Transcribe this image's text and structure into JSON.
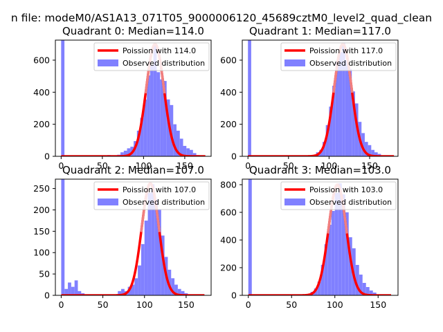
{
  "figure": {
    "suptitle": "n file: modeM0/AS1A13_071T05_9000006120_45689cztM0_level2_quad_clean"
  },
  "colors": {
    "hist": "#8080ff",
    "fit_line": "#ff0000",
    "fit_peak": "#f08080",
    "axes": "#000000"
  },
  "chart_data": [
    {
      "type": "bar",
      "title": "Quadrant 0: Median=114.0",
      "xlim": [
        -7,
        182
      ],
      "ylim": [
        0,
        725
      ],
      "xticks": [
        0,
        50,
        100,
        150
      ],
      "yticks": [
        0,
        200,
        400,
        600
      ],
      "legend": {
        "location": "top-right",
        "entries": [
          "Poission with 114.0",
          "Observed distribution"
        ]
      },
      "median": 114.0,
      "bin_width": 4,
      "hist_bins": [
        {
          "x": 0,
          "y": 725
        },
        {
          "x": 56,
          "y": 8
        },
        {
          "x": 60,
          "y": 5
        },
        {
          "x": 68,
          "y": 10
        },
        {
          "x": 72,
          "y": 25
        },
        {
          "x": 76,
          "y": 35
        },
        {
          "x": 80,
          "y": 50
        },
        {
          "x": 84,
          "y": 60
        },
        {
          "x": 88,
          "y": 95
        },
        {
          "x": 92,
          "y": 160
        },
        {
          "x": 96,
          "y": 240
        },
        {
          "x": 100,
          "y": 355
        },
        {
          "x": 104,
          "y": 505
        },
        {
          "x": 108,
          "y": 570
        },
        {
          "x": 112,
          "y": 690
        },
        {
          "x": 116,
          "y": 525
        },
        {
          "x": 120,
          "y": 480
        },
        {
          "x": 124,
          "y": 470
        },
        {
          "x": 128,
          "y": 355
        },
        {
          "x": 132,
          "y": 320
        },
        {
          "x": 136,
          "y": 200
        },
        {
          "x": 140,
          "y": 160
        },
        {
          "x": 144,
          "y": 110
        },
        {
          "x": 148,
          "y": 65
        },
        {
          "x": 152,
          "y": 50
        },
        {
          "x": 156,
          "y": 40
        },
        {
          "x": 160,
          "y": 20
        },
        {
          "x": 164,
          "y": 8
        }
      ],
      "fit_curve": {
        "x_range": [
          0,
          175
        ],
        "peak_x": 114,
        "peak_y": 700,
        "sigma": 10.7
      }
    },
    {
      "type": "bar",
      "title": "Quadrant 1: Median=117.0",
      "xlim": [
        -7,
        185
      ],
      "ylim": [
        0,
        725
      ],
      "xticks": [
        0,
        50,
        100,
        150
      ],
      "yticks": [
        0,
        200,
        400,
        600
      ],
      "legend": {
        "location": "top-right",
        "entries": [
          "Poission with 117.0",
          "Observed distribution"
        ]
      },
      "median": 117.0,
      "bin_width": 4,
      "hist_bins": [
        {
          "x": 0,
          "y": 725
        },
        {
          "x": 80,
          "y": 8
        },
        {
          "x": 84,
          "y": 25
        },
        {
          "x": 88,
          "y": 40
        },
        {
          "x": 92,
          "y": 90
        },
        {
          "x": 96,
          "y": 195
        },
        {
          "x": 100,
          "y": 310
        },
        {
          "x": 104,
          "y": 440
        },
        {
          "x": 108,
          "y": 590
        },
        {
          "x": 112,
          "y": 650
        },
        {
          "x": 116,
          "y": 710
        },
        {
          "x": 120,
          "y": 600
        },
        {
          "x": 124,
          "y": 545
        },
        {
          "x": 128,
          "y": 405
        },
        {
          "x": 132,
          "y": 330
        },
        {
          "x": 136,
          "y": 215
        },
        {
          "x": 140,
          "y": 145
        },
        {
          "x": 144,
          "y": 90
        },
        {
          "x": 148,
          "y": 70
        },
        {
          "x": 152,
          "y": 40
        },
        {
          "x": 156,
          "y": 25
        },
        {
          "x": 160,
          "y": 15
        }
      ],
      "fit_curve": {
        "x_range": [
          0,
          180
        ],
        "peak_x": 117,
        "peak_y": 700,
        "sigma": 10.8
      }
    },
    {
      "type": "bar",
      "title": "Quadrant 2: Median=107.0",
      "xlim": [
        -7,
        180
      ],
      "ylim": [
        0,
        272
      ],
      "xticks": [
        0,
        50,
        100,
        150
      ],
      "yticks": [
        0,
        50,
        100,
        150,
        200,
        250
      ],
      "legend": {
        "location": "top-right",
        "entries": [
          "Poission with 107.0",
          "Observed distribution"
        ]
      },
      "median": 107.0,
      "bin_width": 4,
      "hist_bins": [
        {
          "x": 0,
          "y": 272
        },
        {
          "x": 4,
          "y": 15
        },
        {
          "x": 8,
          "y": 30
        },
        {
          "x": 12,
          "y": 20
        },
        {
          "x": 16,
          "y": 35
        },
        {
          "x": 20,
          "y": 10
        },
        {
          "x": 24,
          "y": 5
        },
        {
          "x": 68,
          "y": 10
        },
        {
          "x": 72,
          "y": 15
        },
        {
          "x": 76,
          "y": 10
        },
        {
          "x": 80,
          "y": 20
        },
        {
          "x": 84,
          "y": 25
        },
        {
          "x": 88,
          "y": 40
        },
        {
          "x": 92,
          "y": 70
        },
        {
          "x": 96,
          "y": 120
        },
        {
          "x": 100,
          "y": 175
        },
        {
          "x": 104,
          "y": 240
        },
        {
          "x": 108,
          "y": 260
        },
        {
          "x": 112,
          "y": 225
        },
        {
          "x": 116,
          "y": 200
        },
        {
          "x": 120,
          "y": 140
        },
        {
          "x": 124,
          "y": 90
        },
        {
          "x": 128,
          "y": 60
        },
        {
          "x": 132,
          "y": 40
        },
        {
          "x": 136,
          "y": 25
        },
        {
          "x": 140,
          "y": 15
        },
        {
          "x": 144,
          "y": 10
        },
        {
          "x": 148,
          "y": 5
        }
      ],
      "fit_curve": {
        "x_range": [
          0,
          172
        ],
        "peak_x": 107,
        "peak_y": 262,
        "sigma": 10.3
      }
    },
    {
      "type": "bar",
      "title": "Quadrant 3: Median=103.0",
      "xlim": [
        -7,
        173
      ],
      "ylim": [
        0,
        840
      ],
      "xticks": [
        0,
        50,
        100,
        150
      ],
      "yticks": [
        0,
        200,
        400,
        600,
        800
      ],
      "legend": {
        "location": "top-right",
        "entries": [
          "Poission with 103.0",
          "Observed distribution"
        ]
      },
      "median": 103.0,
      "bin_width": 4,
      "hist_bins": [
        {
          "x": 0,
          "y": 840
        },
        {
          "x": 68,
          "y": 10
        },
        {
          "x": 72,
          "y": 25
        },
        {
          "x": 76,
          "y": 50
        },
        {
          "x": 80,
          "y": 100
        },
        {
          "x": 84,
          "y": 220
        },
        {
          "x": 88,
          "y": 370
        },
        {
          "x": 92,
          "y": 510
        },
        {
          "x": 96,
          "y": 610
        },
        {
          "x": 100,
          "y": 740
        },
        {
          "x": 104,
          "y": 810
        },
        {
          "x": 108,
          "y": 730
        },
        {
          "x": 112,
          "y": 600
        },
        {
          "x": 116,
          "y": 420
        },
        {
          "x": 120,
          "y": 340
        },
        {
          "x": 124,
          "y": 220
        },
        {
          "x": 128,
          "y": 150
        },
        {
          "x": 132,
          "y": 90
        },
        {
          "x": 136,
          "y": 60
        },
        {
          "x": 140,
          "y": 35
        },
        {
          "x": 144,
          "y": 20
        }
      ],
      "fit_curve": {
        "x_range": [
          0,
          165
        ],
        "peak_x": 103,
        "peak_y": 800,
        "sigma": 10.2
      }
    }
  ]
}
